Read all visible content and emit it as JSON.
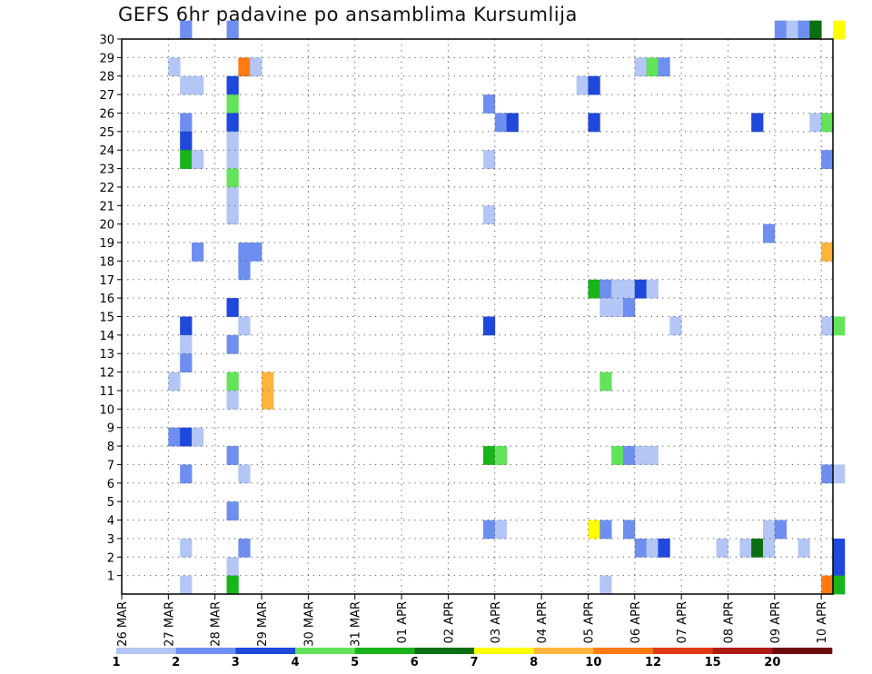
{
  "chart_data": {
    "type": "heatmap",
    "title": "GEFS 6hr padavine po ansamblima Kursumlija",
    "x_tick_labels": [
      "26 MAR",
      "27 MAR",
      "28 MAR",
      "29 MAR",
      "30 MAR",
      "31 MAR",
      "01 APR",
      "02 APR",
      "03 APR",
      "04 APR",
      "05 APR",
      "06 APR",
      "07 APR",
      "08 APR",
      "09 APR",
      "10 APR"
    ],
    "x_range": [
      "26 MAR 00h",
      "10 APR 06h"
    ],
    "step": "6hr",
    "y_tick_labels": [
      "1",
      "2",
      "3",
      "4",
      "5",
      "6",
      "7",
      "8",
      "9",
      "10",
      "11",
      "12",
      "13",
      "14",
      "15",
      "16",
      "17",
      "18",
      "19",
      "20",
      "21",
      "22",
      "23",
      "24",
      "25",
      "26",
      "27",
      "28",
      "29",
      "30"
    ],
    "y_range": [
      0,
      30
    ],
    "grid": true,
    "legend": {
      "placement": "bottom",
      "colors": [
        "#b3c6f5",
        "#6f8ff0",
        "#1f48dc",
        "#62e35a",
        "#17b51a",
        "#0b6e10",
        "#ffff00",
        "#ffb43c",
        "#ff7a12",
        "#e03a16",
        "#ae1a14",
        "#6e0c0c"
      ],
      "labels": [
        "1",
        "2",
        "3",
        "4",
        "5",
        "6",
        "7",
        "8",
        "10",
        "12",
        "15",
        "20"
      ]
    },
    "cells": [
      {
        "m": 30,
        "t": "27 MAR 06h",
        "c": 2
      },
      {
        "m": 30,
        "t": "28 MAR 06h",
        "c": 2
      },
      {
        "m": 30,
        "t": "09 APR 00h",
        "c": 2
      },
      {
        "m": 30,
        "t": "09 APR 06h",
        "c": 1
      },
      {
        "m": 30,
        "t": "09 APR 12h",
        "c": 2
      },
      {
        "m": 30,
        "t": "09 APR 18h",
        "c": 6
      },
      {
        "m": 30,
        "t": "10 APR 06h",
        "c": 7
      },
      {
        "m": 28,
        "t": "27 MAR 00h",
        "c": 1
      },
      {
        "m": 28,
        "t": "28 MAR 12h",
        "c": 9
      },
      {
        "m": 28,
        "t": "28 MAR 18h",
        "c": 1
      },
      {
        "m": 28,
        "t": "06 APR 00h",
        "c": 1
      },
      {
        "m": 28,
        "t": "06 APR 06h",
        "c": 4
      },
      {
        "m": 28,
        "t": "06 APR 12h",
        "c": 2
      },
      {
        "m": 27,
        "t": "27 MAR 06h",
        "c": 1
      },
      {
        "m": 27,
        "t": "27 MAR 12h",
        "c": 1
      },
      {
        "m": 27,
        "t": "28 MAR 06h",
        "c": 3
      },
      {
        "m": 27,
        "t": "04 APR 18h",
        "c": 1
      },
      {
        "m": 27,
        "t": "05 APR 00h",
        "c": 3
      },
      {
        "m": 26,
        "t": "28 MAR 06h",
        "c": 4
      },
      {
        "m": 26,
        "t": "02 APR 18h",
        "c": 2
      },
      {
        "m": 25,
        "t": "27 MAR 06h",
        "c": 2
      },
      {
        "m": 25,
        "t": "28 MAR 06h",
        "c": 3
      },
      {
        "m": 25,
        "t": "03 APR 00h",
        "c": 2
      },
      {
        "m": 25,
        "t": "03 APR 06h",
        "c": 3
      },
      {
        "m": 25,
        "t": "05 APR 00h",
        "c": 3
      },
      {
        "m": 25,
        "t": "08 APR 12h",
        "c": 3
      },
      {
        "m": 25,
        "t": "09 APR 18h",
        "c": 1
      },
      {
        "m": 25,
        "t": "10 APR 00h",
        "c": 4
      },
      {
        "m": 24,
        "t": "27 MAR 06h",
        "c": 3
      },
      {
        "m": 24,
        "t": "28 MAR 06h",
        "c": 1
      },
      {
        "m": 23,
        "t": "27 MAR 06h",
        "c": 5
      },
      {
        "m": 23,
        "t": "27 MAR 12h",
        "c": 1
      },
      {
        "m": 23,
        "t": "28 MAR 06h",
        "c": 1
      },
      {
        "m": 23,
        "t": "02 APR 18h",
        "c": 1
      },
      {
        "m": 23,
        "t": "10 APR 00h",
        "c": 2
      },
      {
        "m": 22,
        "t": "28 MAR 06h",
        "c": 4
      },
      {
        "m": 21,
        "t": "28 MAR 06h",
        "c": 1
      },
      {
        "m": 20,
        "t": "28 MAR 06h",
        "c": 1
      },
      {
        "m": 20,
        "t": "02 APR 18h",
        "c": 1
      },
      {
        "m": 19,
        "t": "08 APR 18h",
        "c": 2
      },
      {
        "m": 18,
        "t": "27 MAR 12h",
        "c": 2
      },
      {
        "m": 18,
        "t": "28 MAR 12h",
        "c": 2
      },
      {
        "m": 18,
        "t": "28 MAR 18h",
        "c": 2
      },
      {
        "m": 18,
        "t": "10 APR 00h",
        "c": 8
      },
      {
        "m": 17,
        "t": "28 MAR 12h",
        "c": 2
      },
      {
        "m": 16,
        "t": "05 APR 00h",
        "c": 5
      },
      {
        "m": 16,
        "t": "05 APR 06h",
        "c": 2
      },
      {
        "m": 16,
        "t": "05 APR 12h",
        "c": 1
      },
      {
        "m": 16,
        "t": "05 APR 18h",
        "c": 1
      },
      {
        "m": 16,
        "t": "06 APR 00h",
        "c": 3
      },
      {
        "m": 16,
        "t": "06 APR 06h",
        "c": 1
      },
      {
        "m": 15,
        "t": "28 MAR 06h",
        "c": 3
      },
      {
        "m": 15,
        "t": "05 APR 06h",
        "c": 1
      },
      {
        "m": 15,
        "t": "05 APR 12h",
        "c": 1
      },
      {
        "m": 15,
        "t": "05 APR 18h",
        "c": 2
      },
      {
        "m": 14,
        "t": "27 MAR 06h",
        "c": 3
      },
      {
        "m": 14,
        "t": "28 MAR 12h",
        "c": 1
      },
      {
        "m": 14,
        "t": "02 APR 18h",
        "c": 3
      },
      {
        "m": 14,
        "t": "06 APR 18h",
        "c": 1
      },
      {
        "m": 14,
        "t": "10 APR 00h",
        "c": 1
      },
      {
        "m": 14,
        "t": "10 APR 06h",
        "c": 4
      },
      {
        "m": 13,
        "t": "27 MAR 06h",
        "c": 1
      },
      {
        "m": 13,
        "t": "28 MAR 06h",
        "c": 2
      },
      {
        "m": 12,
        "t": "27 MAR 06h",
        "c": 2
      },
      {
        "m": 11,
        "t": "27 MAR 00h",
        "c": 1
      },
      {
        "m": 11,
        "t": "28 MAR 06h",
        "c": 4
      },
      {
        "m": 11,
        "t": "29 MAR 00h",
        "c": 8
      },
      {
        "m": 11,
        "t": "05 APR 06h",
        "c": 4
      },
      {
        "m": 10,
        "t": "28 MAR 06h",
        "c": 1
      },
      {
        "m": 10,
        "t": "29 MAR 00h",
        "c": 8
      },
      {
        "m": 8,
        "t": "27 MAR 00h",
        "c": 2
      },
      {
        "m": 8,
        "t": "27 MAR 06h",
        "c": 3
      },
      {
        "m": 8,
        "t": "27 MAR 12h",
        "c": 1
      },
      {
        "m": 7,
        "t": "28 MAR 06h",
        "c": 2
      },
      {
        "m": 7,
        "t": "02 APR 18h",
        "c": 5
      },
      {
        "m": 7,
        "t": "03 APR 00h",
        "c": 4
      },
      {
        "m": 7,
        "t": "05 APR 12h",
        "c": 4
      },
      {
        "m": 7,
        "t": "05 APR 18h",
        "c": 2
      },
      {
        "m": 7,
        "t": "06 APR 00h",
        "c": 1
      },
      {
        "m": 7,
        "t": "06 APR 06h",
        "c": 1
      },
      {
        "m": 6,
        "t": "27 MAR 06h",
        "c": 2
      },
      {
        "m": 6,
        "t": "28 MAR 12h",
        "c": 1
      },
      {
        "m": 6,
        "t": "10 APR 00h",
        "c": 2
      },
      {
        "m": 6,
        "t": "10 APR 06h",
        "c": 1
      },
      {
        "m": 4,
        "t": "28 MAR 06h",
        "c": 2
      },
      {
        "m": 3,
        "t": "02 APR 18h",
        "c": 2
      },
      {
        "m": 3,
        "t": "03 APR 00h",
        "c": 1
      },
      {
        "m": 3,
        "t": "05 APR 00h",
        "c": 7
      },
      {
        "m": 3,
        "t": "05 APR 06h",
        "c": 2
      },
      {
        "m": 3,
        "t": "05 APR 18h",
        "c": 2
      },
      {
        "m": 3,
        "t": "08 APR 18h",
        "c": 1
      },
      {
        "m": 3,
        "t": "09 APR 00h",
        "c": 2
      },
      {
        "m": 2,
        "t": "27 MAR 06h",
        "c": 1
      },
      {
        "m": 2,
        "t": "28 MAR 12h",
        "c": 2
      },
      {
        "m": 2,
        "t": "06 APR 00h",
        "c": 2
      },
      {
        "m": 2,
        "t": "06 APR 06h",
        "c": 1
      },
      {
        "m": 2,
        "t": "06 APR 12h",
        "c": 3
      },
      {
        "m": 2,
        "t": "07 APR 18h",
        "c": 1
      },
      {
        "m": 2,
        "t": "08 APR 06h",
        "c": 1
      },
      {
        "m": 2,
        "t": "08 APR 12h",
        "c": 6
      },
      {
        "m": 2,
        "t": "08 APR 18h",
        "c": 1
      },
      {
        "m": 2,
        "t": "09 APR 12h",
        "c": 1
      },
      {
        "m": 2,
        "t": "10 APR 06h",
        "c": 3
      },
      {
        "m": 1,
        "t": "28 MAR 06h",
        "c": 1
      },
      {
        "m": 1,
        "t": "10 APR 06h",
        "c": 3
      },
      {
        "m": 0,
        "t": "27 MAR 06h",
        "c": 1
      },
      {
        "m": 0,
        "t": "28 MAR 06h",
        "c": 5
      },
      {
        "m": 0,
        "t": "05 APR 06h",
        "c": 1
      },
      {
        "m": 0,
        "t": "10 APR 00h",
        "c": 9
      },
      {
        "m": 0,
        "t": "10 APR 06h",
        "c": 5
      }
    ]
  }
}
